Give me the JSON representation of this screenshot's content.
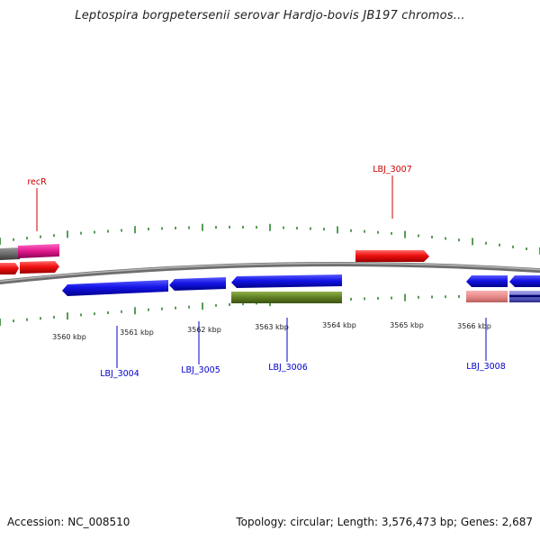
{
  "title": "Leptospira borgpetersenii serovar Hardjo-bovis JB197 chromos...",
  "footer": {
    "accession": "Accession: NC_008510",
    "summary": "Topology: circular; Length: 3,576,473 bp; Genes: 2,687"
  },
  "colors": {
    "backbone": "#8a8a8a",
    "tick": "#1f7a1f",
    "forward_label": "#cc0000",
    "reverse_label": "#0000cc"
  },
  "scale_labels": [
    "3560 kbp",
    "3561 kbp",
    "3562 kbp",
    "3563 kbp",
    "3564 kbp",
    "3565 kbp",
    "3566 kbp"
  ],
  "gene_labels": [
    {
      "text": "recR",
      "strand": "forward"
    },
    {
      "text": "LBJ_3007",
      "strand": "forward"
    },
    {
      "text": "LBJ_3004",
      "strand": "reverse"
    },
    {
      "text": "LBJ_3005",
      "strand": "reverse"
    },
    {
      "text": "LBJ_3006",
      "strand": "reverse"
    },
    {
      "text": "LBJ_3008",
      "strand": "reverse"
    }
  ]
}
